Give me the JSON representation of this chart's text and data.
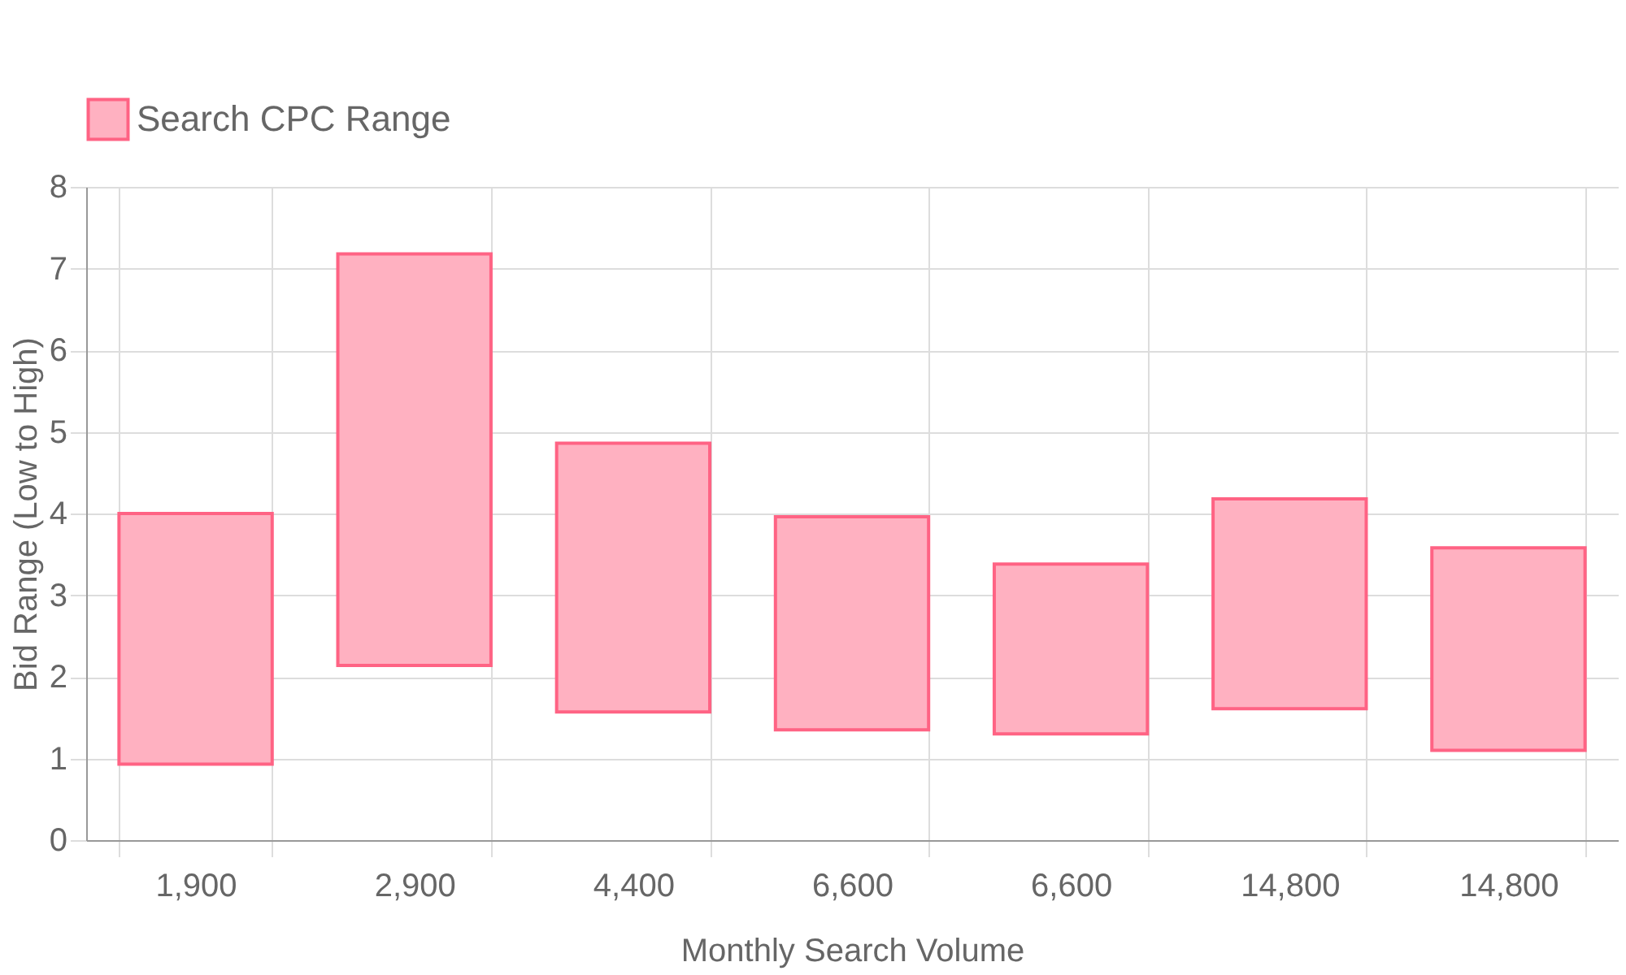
{
  "chart_data": {
    "type": "bar",
    "categories": [
      "1,900",
      "2,900",
      "4,400",
      "6,600",
      "6,600",
      "14,800",
      "14,800"
    ],
    "series": [
      {
        "name": "Search CPC Range",
        "color": "#ffb1c1",
        "values": [
          3.07,
          5.04,
          3.29,
          2.61,
          2.08,
          2.57,
          2.48
        ],
        "base": [
          0.93,
          2.14,
          1.57,
          1.35,
          1.3,
          1.61,
          1.1
        ]
      }
    ],
    "xlabel": "Monthly Search Volume",
    "ylabel": "Bid Range (Low to High)",
    "ylim": [
      0,
      8
    ],
    "yticks": [
      0,
      1,
      2,
      3,
      4,
      5,
      6,
      7,
      8
    ],
    "grid": true,
    "legend": "top"
  }
}
